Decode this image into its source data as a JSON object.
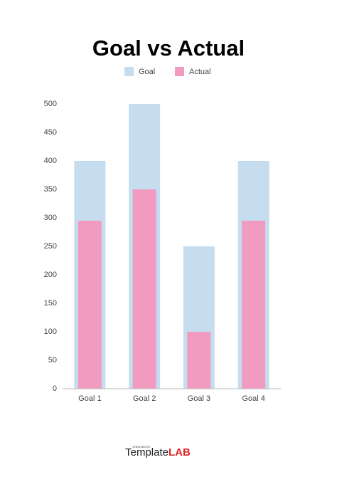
{
  "chart_data": {
    "type": "bar",
    "title": "Goal vs Actual",
    "categories": [
      "Goal 1",
      "Goal 2",
      "Goal 3",
      "Goal 4"
    ],
    "series": [
      {
        "name": "Goal",
        "color": "#c6dcef",
        "values": [
          400,
          500,
          250,
          400
        ]
      },
      {
        "name": "Actual",
        "color": "#f29bc1",
        "values": [
          295,
          350,
          100,
          295
        ]
      }
    ],
    "ylim": [
      0,
      500
    ],
    "yticks": [
      0,
      50,
      100,
      150,
      200,
      250,
      300,
      350,
      400,
      450,
      500
    ],
    "grid": false,
    "legend": "top"
  },
  "footer": {
    "created_by": "CREATED BY",
    "brand": "Template",
    "brand_bold": "LAB"
  }
}
